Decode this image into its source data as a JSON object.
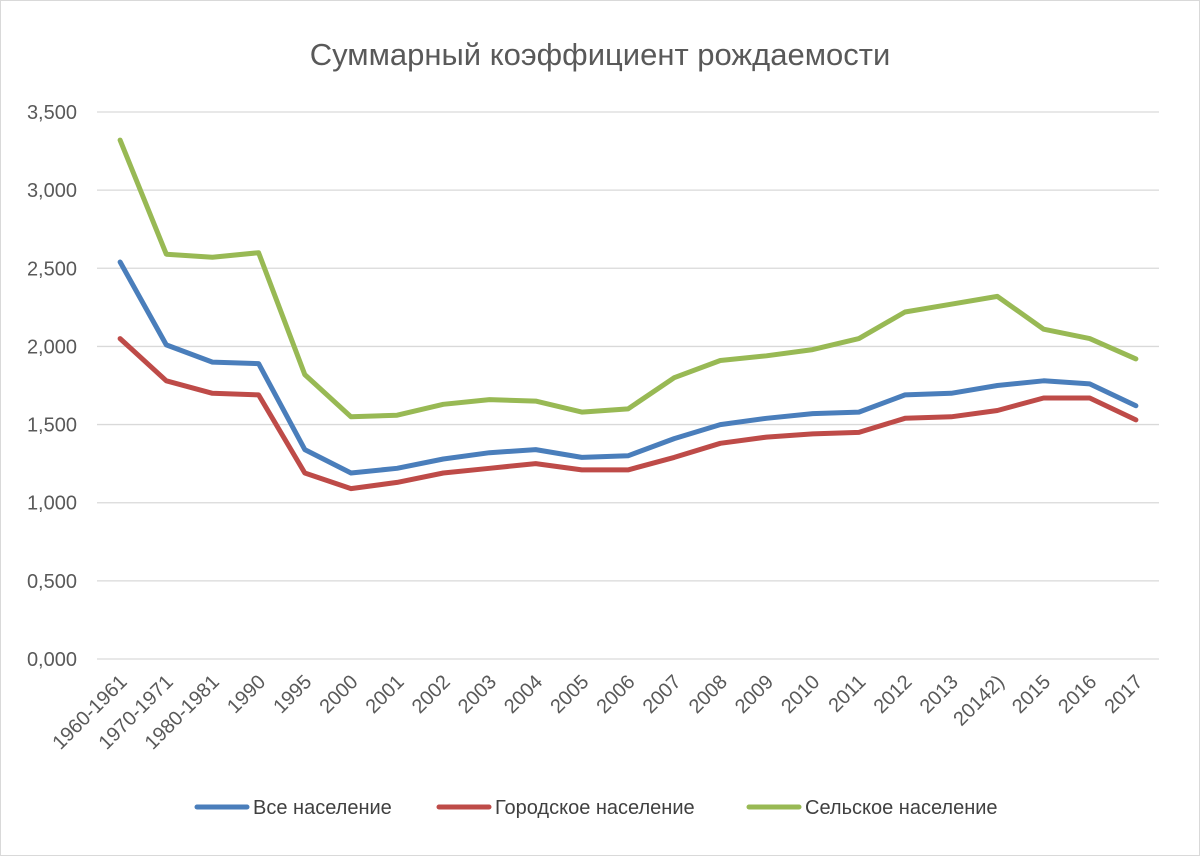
{
  "chart_data": {
    "type": "line",
    "title": "Суммарный коэффициент рождаемости",
    "xlabel": "",
    "ylabel": "",
    "ylim": [
      0,
      3.5
    ],
    "yticks": [
      "0,000",
      "0,500",
      "1,000",
      "1,500",
      "2,000",
      "2,500",
      "3,000",
      "3,500"
    ],
    "grid": true,
    "legend_position": "bottom",
    "categories": [
      "1960-1961",
      "1970-1971",
      "1980-1981",
      "1990",
      "1995",
      "2000",
      "2001",
      "2002",
      "2003",
      "2004",
      "2005",
      "2006",
      "2007",
      "2008",
      "2009",
      "2010",
      "2011",
      "2012",
      "2013",
      "20142)",
      "2015",
      "2016",
      "2017"
    ],
    "series": [
      {
        "name": "Все население",
        "color": "#4a7ebb",
        "values": [
          2.54,
          2.01,
          1.9,
          1.89,
          1.34,
          1.19,
          1.22,
          1.28,
          1.32,
          1.34,
          1.29,
          1.3,
          1.41,
          1.5,
          1.54,
          1.57,
          1.58,
          1.69,
          1.7,
          1.75,
          1.78,
          1.76,
          1.62
        ]
      },
      {
        "name": "Городское население",
        "color": "#be4b48",
        "values": [
          2.05,
          1.78,
          1.7,
          1.69,
          1.19,
          1.09,
          1.13,
          1.19,
          1.22,
          1.25,
          1.21,
          1.21,
          1.29,
          1.38,
          1.42,
          1.44,
          1.45,
          1.54,
          1.55,
          1.59,
          1.67,
          1.67,
          1.53
        ]
      },
      {
        "name": "Сельское население",
        "color": "#98b954",
        "values": [
          3.32,
          2.59,
          2.57,
          2.6,
          1.82,
          1.55,
          1.56,
          1.63,
          1.66,
          1.65,
          1.58,
          1.6,
          1.8,
          1.91,
          1.94,
          1.98,
          2.05,
          2.22,
          2.27,
          2.32,
          2.11,
          2.05,
          1.92
        ]
      }
    ]
  }
}
